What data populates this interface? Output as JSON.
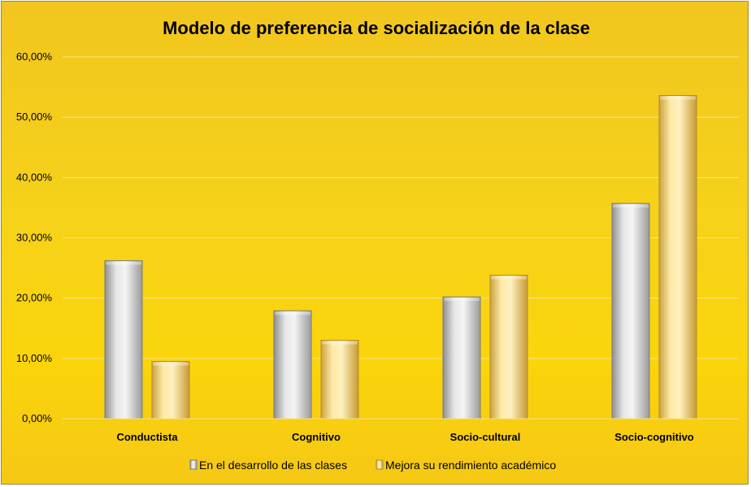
{
  "chart_data": {
    "type": "bar",
    "title": "Modelo de preferencia de socialización de la clase",
    "categories": [
      "Conductista",
      "Cognitivo",
      "Socio-cultural",
      "Socio-cognitivo"
    ],
    "series": [
      {
        "name": "En el desarrollo de las clases",
        "values": [
          26.2,
          17.9,
          20.2,
          35.7
        ],
        "color": "#cfcfcf"
      },
      {
        "name": "Mejora su rendimiento académico",
        "values": [
          9.5,
          13.0,
          23.8,
          53.6
        ],
        "color": "#ffe08a"
      }
    ],
    "ylim": [
      0,
      60
    ],
    "yticks": [
      "0,00%",
      "10,00%",
      "20,00%",
      "30,00%",
      "40,00%",
      "50,00%",
      "60,00%"
    ],
    "xlabel": "",
    "ylabel": "",
    "grid": true,
    "legend_position": "bottom"
  }
}
